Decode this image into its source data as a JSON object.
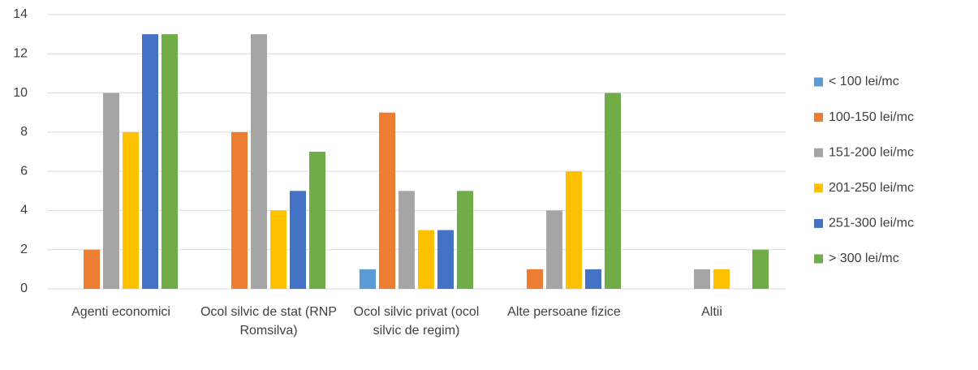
{
  "chart_data": {
    "type": "bar",
    "categories": [
      "Agenti economici",
      "Ocol silvic de stat (RNP Romsilva)",
      "Ocol silvic privat (ocol silvic de regim)",
      "Alte persoane fizice",
      "Altii"
    ],
    "series": [
      {
        "name": "< 100 lei/mc",
        "color": "#5b9bd5",
        "values": [
          0,
          0,
          1,
          0,
          0
        ]
      },
      {
        "name": "100-150 lei/mc",
        "color": "#ed7d31",
        "values": [
          2,
          8,
          9,
          1,
          0
        ]
      },
      {
        "name": "151-200 lei/mc",
        "color": "#a5a5a5",
        "values": [
          10,
          13,
          5,
          4,
          1
        ]
      },
      {
        "name": "201-250 lei/mc",
        "color": "#ffc000",
        "values": [
          8,
          4,
          3,
          6,
          1
        ]
      },
      {
        "name": "251-300 lei/mc",
        "color": "#4472c4",
        "values": [
          13,
          5,
          3,
          1,
          0
        ]
      },
      {
        "name": "> 300 lei/mc",
        "color": "#70ad47",
        "values": [
          13,
          7,
          5,
          10,
          2
        ]
      }
    ],
    "ylim": [
      0,
      14
    ],
    "yticks": [
      0,
      2,
      4,
      6,
      8,
      10,
      12,
      14
    ],
    "grid": true,
    "legend": "right"
  }
}
